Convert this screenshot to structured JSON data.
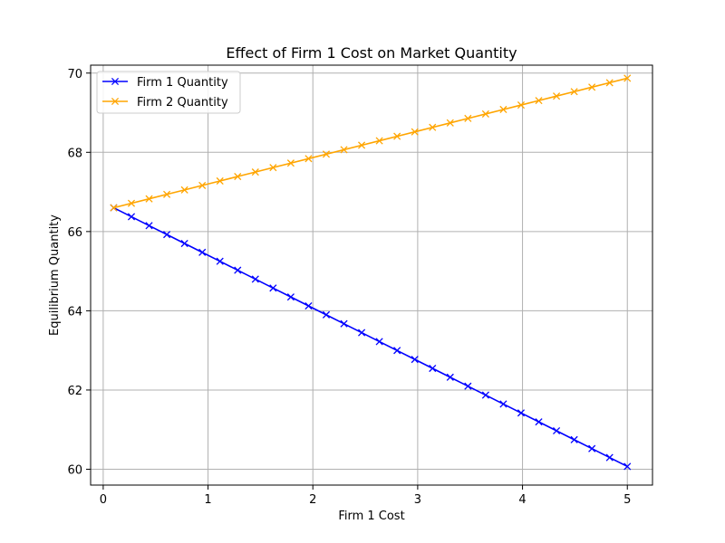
{
  "chart_data": {
    "type": "line",
    "title": "Effect of Firm 1 Cost on Market Quantity",
    "xlabel": "Firm 1 Cost",
    "ylabel": "Equilibrium Quantity",
    "xlim": [
      -0.12,
      5.24
    ],
    "ylim": [
      59.6,
      70.2
    ],
    "xticks": [
      0,
      1,
      2,
      3,
      4,
      5
    ],
    "yticks": [
      60,
      62,
      64,
      66,
      68,
      70
    ],
    "grid": true,
    "legend_position": "top-left",
    "x_range": [
      0.1,
      5.0
    ],
    "num_points": 30,
    "series": [
      {
        "name": "Firm 1 Quantity",
        "color": "#0000ff",
        "marker": "x",
        "start": 66.6,
        "end": 60.07
      },
      {
        "name": "Firm 2 Quantity",
        "color": "#ffa500",
        "marker": "x",
        "start": 66.6,
        "end": 69.87
      }
    ]
  }
}
